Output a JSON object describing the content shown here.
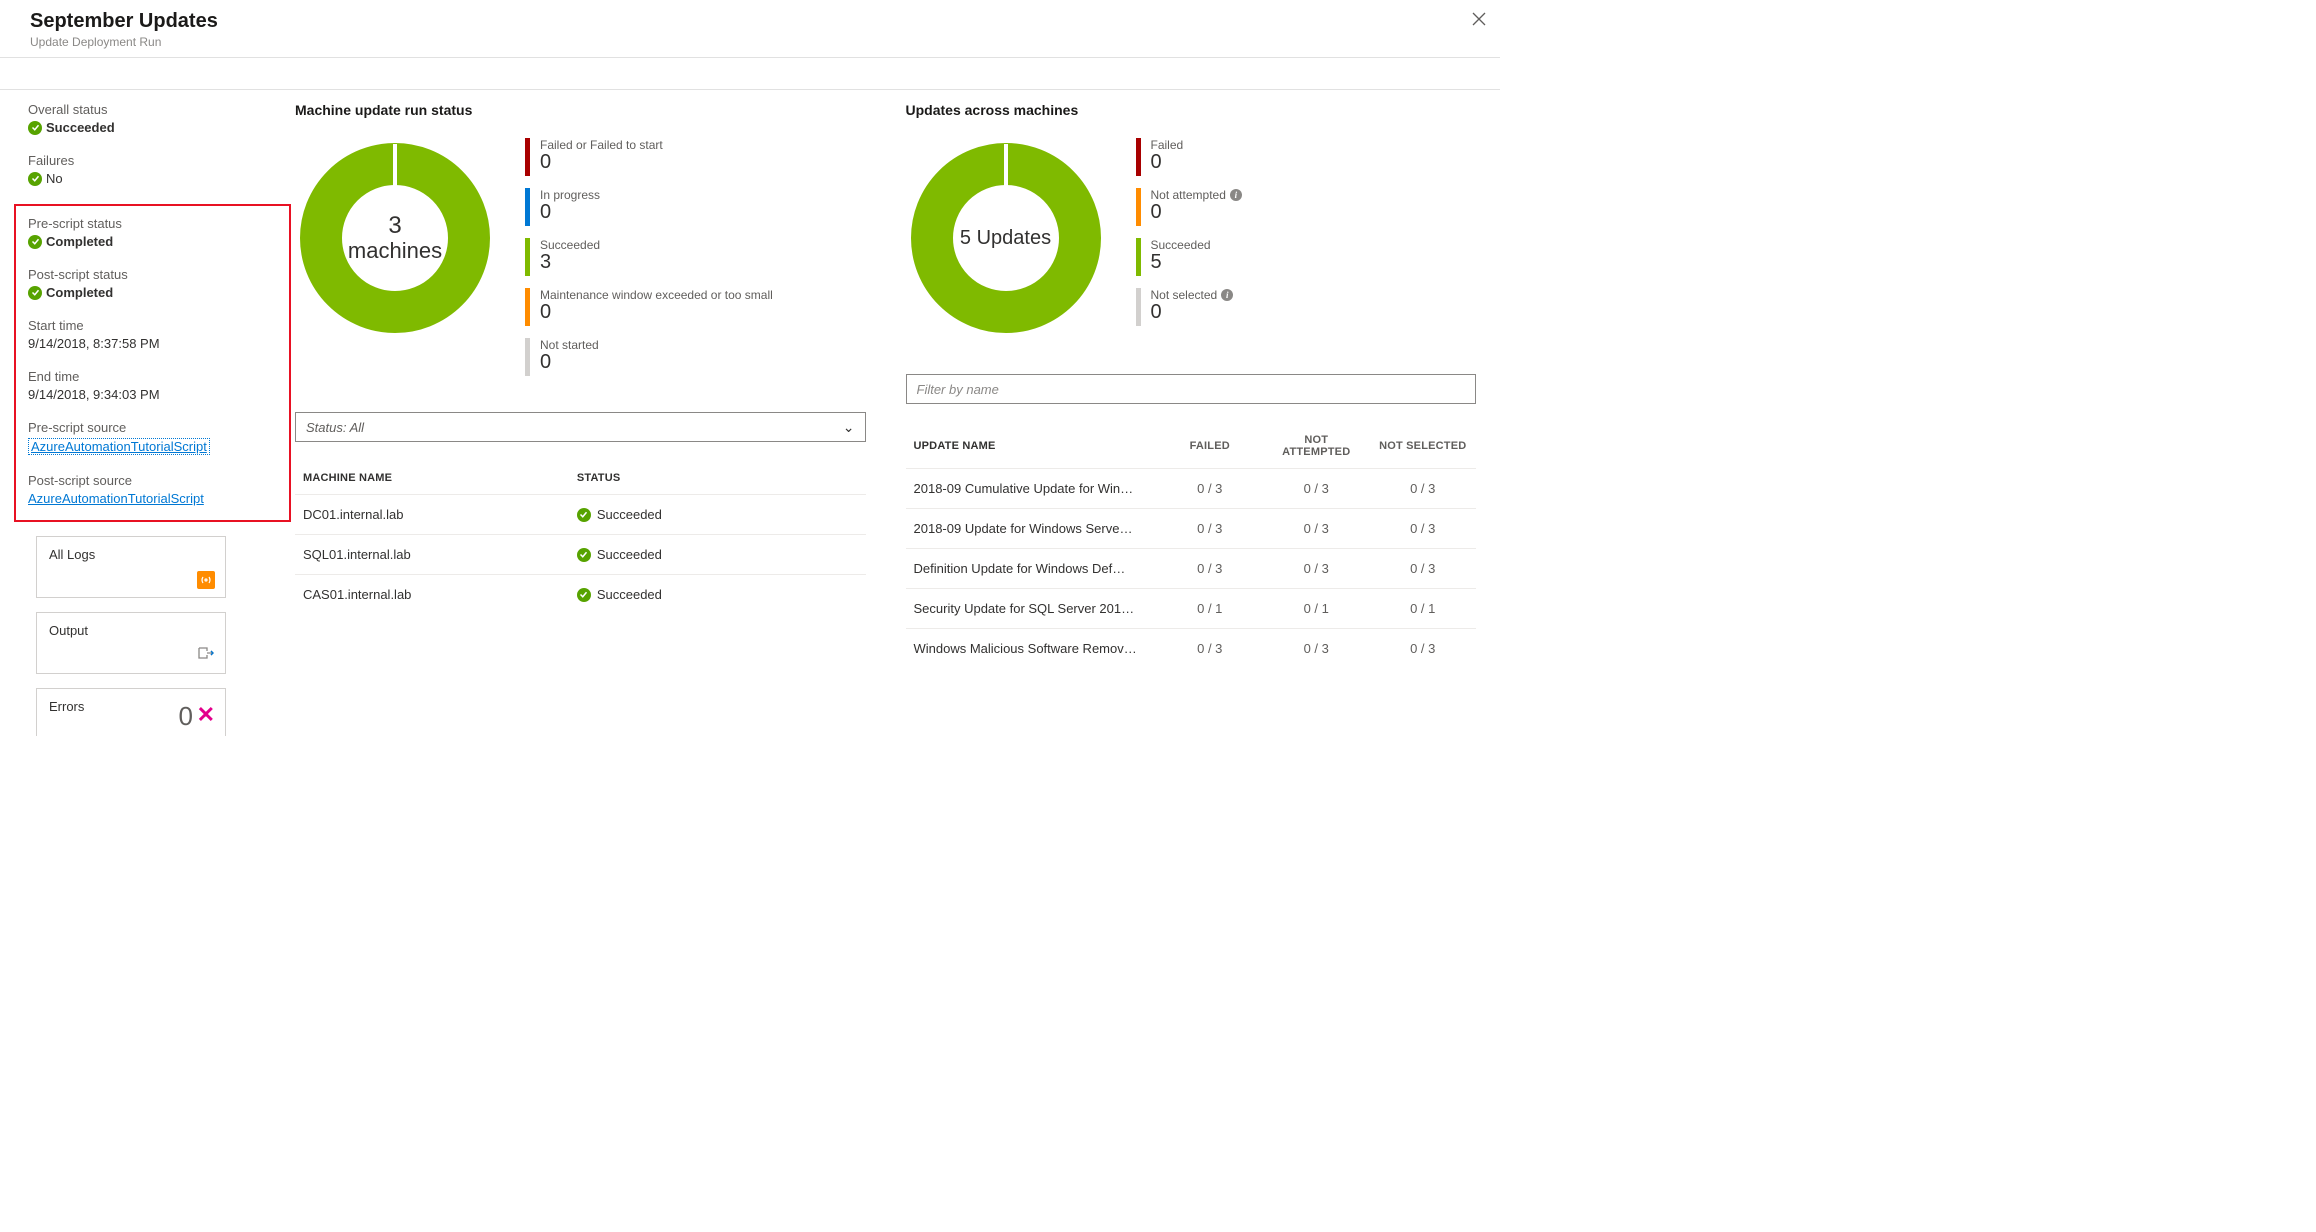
{
  "header": {
    "title": "September Updates",
    "subtitle": "Update Deployment Run"
  },
  "status": {
    "overall_label": "Overall status",
    "overall_value": "Succeeded",
    "failures_label": "Failures",
    "failures_value": "No",
    "prescript_status_label": "Pre-script status",
    "prescript_status_value": "Completed",
    "postscript_status_label": "Post-script status",
    "postscript_status_value": "Completed",
    "start_time_label": "Start time",
    "start_time_value": "9/14/2018, 8:37:58 PM",
    "end_time_label": "End time",
    "end_time_value": "9/14/2018, 9:34:03 PM",
    "prescript_source_label": "Pre-script source",
    "prescript_source_link": "AzureAutomationTutorialScript",
    "postscript_source_label": "Post-script source",
    "postscript_source_link": "AzureAutomationTutorialScript"
  },
  "tiles": {
    "all_logs": "All Logs",
    "output": "Output",
    "errors": "Errors",
    "errors_count": "0"
  },
  "colors": {
    "green": "#7fba00",
    "red": "#a80000",
    "blue": "#0078d4",
    "orange": "#ff8c00",
    "grey": "#a6a6a6",
    "lightgrey": "#d2d0ce"
  },
  "machine_panel": {
    "title": "Machine update run status",
    "donut_count": "3",
    "donut_label": "machines",
    "legend": [
      {
        "label": "Failed or Failed to start",
        "value": "0",
        "color": "#a80000"
      },
      {
        "label": "In progress",
        "value": "0",
        "color": "#0078d4"
      },
      {
        "label": "Succeeded",
        "value": "3",
        "color": "#7fba00"
      },
      {
        "label": "Maintenance window exceeded or too small",
        "value": "0",
        "color": "#ff8c00"
      },
      {
        "label": "Not started",
        "value": "0",
        "color": "#d2d0ce"
      }
    ]
  },
  "updates_panel": {
    "title": "Updates across machines",
    "donut_text": "5 Updates",
    "legend": [
      {
        "label": "Failed",
        "value": "0",
        "color": "#a80000",
        "info": false
      },
      {
        "label": "Not attempted",
        "value": "0",
        "color": "#ff8c00",
        "info": true
      },
      {
        "label": "Succeeded",
        "value": "5",
        "color": "#7fba00",
        "info": false
      },
      {
        "label": "Not selected",
        "value": "0",
        "color": "#d2d0ce",
        "info": true
      }
    ]
  },
  "machine_table": {
    "filter_placeholder": "Status: All",
    "columns": {
      "name": "MACHINE NAME",
      "status": "STATUS"
    },
    "rows": [
      {
        "name": "DC01.internal.lab",
        "status": "Succeeded"
      },
      {
        "name": "SQL01.internal.lab",
        "status": "Succeeded"
      },
      {
        "name": "CAS01.internal.lab",
        "status": "Succeeded"
      }
    ]
  },
  "updates_table": {
    "filter_placeholder": "Filter by name",
    "columns": {
      "name": "UPDATE NAME",
      "failed": "FAILED",
      "not_attempted": "NOT ATTEMPTED",
      "not_selected": "NOT SELECTED"
    },
    "rows": [
      {
        "name": "2018-09 Cumulative Update for Win…",
        "failed": "0 / 3",
        "na": "0 / 3",
        "ns": "0 / 3"
      },
      {
        "name": "2018-09 Update for Windows Serve…",
        "failed": "0 / 3",
        "na": "0 / 3",
        "ns": "0 / 3"
      },
      {
        "name": "Definition Update for Windows Def…",
        "failed": "0 / 3",
        "na": "0 / 3",
        "ns": "0 / 3"
      },
      {
        "name": "Security Update for SQL Server 201…",
        "failed": "0 / 1",
        "na": "0 / 1",
        "ns": "0 / 1"
      },
      {
        "name": "Windows Malicious Software Remov…",
        "failed": "0 / 3",
        "na": "0 / 3",
        "ns": "0 / 3"
      }
    ]
  }
}
